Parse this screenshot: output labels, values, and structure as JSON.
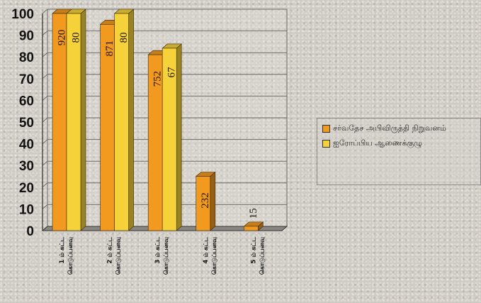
{
  "chart_data": {
    "type": "bar",
    "categories": [
      "1 ம் கட்ட கொடுப்பனவு",
      "2 ம் கட்ட கொடுப்பனவு",
      "3 ம் கட்ட கொடுப்பனவு",
      "4 ம் கட்ட கொடுப்பனவு",
      "5 ம் கட்ட கொடுப்பனவு"
    ],
    "series": [
      {
        "name": "சர்வதேச அபிவிருத்தி நிறுவனம்",
        "values": [
          100,
          95,
          81,
          25,
          2
        ],
        "labels": [
          "920",
          "871",
          "752",
          "232",
          "15"
        ],
        "color": "#f29a1f"
      },
      {
        "name": "ஐரோப்பிய ஆணைக்குழு",
        "values": [
          100,
          100,
          84,
          0,
          0
        ],
        "labels": [
          "80",
          "80",
          "67",
          "",
          ""
        ],
        "color": "#f5d23a"
      }
    ],
    "yticks": [
      "0",
      "10",
      "20",
      "30",
      "40",
      "50",
      "60",
      "70",
      "80",
      "90",
      "100"
    ],
    "ylim": [
      0,
      100
    ],
    "grid": true,
    "style": "3d-bar",
    "legend_position": "right",
    "title": "",
    "xlabel": "",
    "ylabel": ""
  }
}
